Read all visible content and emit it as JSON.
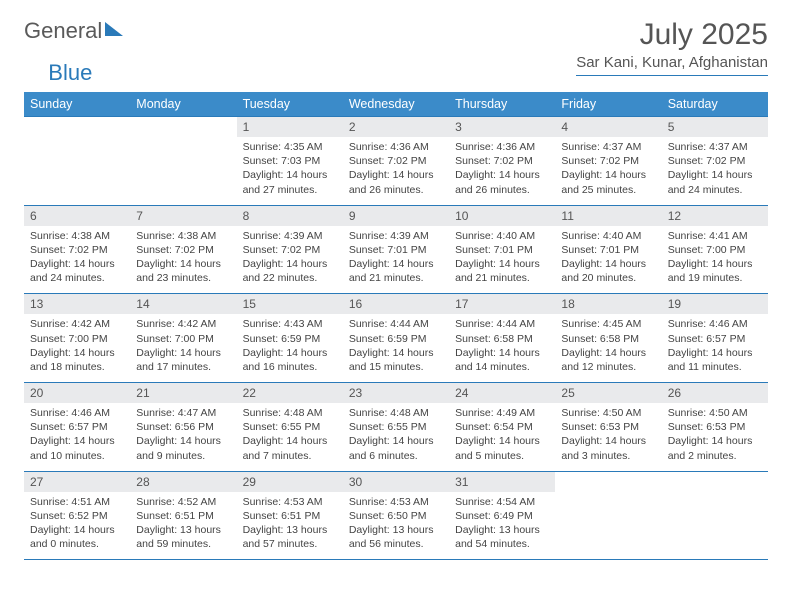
{
  "logo": {
    "part1": "General",
    "part2": "Blue"
  },
  "title": "July 2025",
  "location": "Sar Kani, Kunar, Afghanistan",
  "colors": {
    "header_bg": "#3b8bc9",
    "rule": "#2a7ab9",
    "daynum_bg": "#e9eaec",
    "text": "#444444",
    "title": "#555555"
  },
  "day_headers": [
    "Sunday",
    "Monday",
    "Tuesday",
    "Wednesday",
    "Thursday",
    "Friday",
    "Saturday"
  ],
  "weeks": [
    [
      null,
      null,
      {
        "n": "1",
        "sunrise": "4:35 AM",
        "sunset": "7:03 PM",
        "dl": "14 hours and 27 minutes."
      },
      {
        "n": "2",
        "sunrise": "4:36 AM",
        "sunset": "7:02 PM",
        "dl": "14 hours and 26 minutes."
      },
      {
        "n": "3",
        "sunrise": "4:36 AM",
        "sunset": "7:02 PM",
        "dl": "14 hours and 26 minutes."
      },
      {
        "n": "4",
        "sunrise": "4:37 AM",
        "sunset": "7:02 PM",
        "dl": "14 hours and 25 minutes."
      },
      {
        "n": "5",
        "sunrise": "4:37 AM",
        "sunset": "7:02 PM",
        "dl": "14 hours and 24 minutes."
      }
    ],
    [
      {
        "n": "6",
        "sunrise": "4:38 AM",
        "sunset": "7:02 PM",
        "dl": "14 hours and 24 minutes."
      },
      {
        "n": "7",
        "sunrise": "4:38 AM",
        "sunset": "7:02 PM",
        "dl": "14 hours and 23 minutes."
      },
      {
        "n": "8",
        "sunrise": "4:39 AM",
        "sunset": "7:02 PM",
        "dl": "14 hours and 22 minutes."
      },
      {
        "n": "9",
        "sunrise": "4:39 AM",
        "sunset": "7:01 PM",
        "dl": "14 hours and 21 minutes."
      },
      {
        "n": "10",
        "sunrise": "4:40 AM",
        "sunset": "7:01 PM",
        "dl": "14 hours and 21 minutes."
      },
      {
        "n": "11",
        "sunrise": "4:40 AM",
        "sunset": "7:01 PM",
        "dl": "14 hours and 20 minutes."
      },
      {
        "n": "12",
        "sunrise": "4:41 AM",
        "sunset": "7:00 PM",
        "dl": "14 hours and 19 minutes."
      }
    ],
    [
      {
        "n": "13",
        "sunrise": "4:42 AM",
        "sunset": "7:00 PM",
        "dl": "14 hours and 18 minutes."
      },
      {
        "n": "14",
        "sunrise": "4:42 AM",
        "sunset": "7:00 PM",
        "dl": "14 hours and 17 minutes."
      },
      {
        "n": "15",
        "sunrise": "4:43 AM",
        "sunset": "6:59 PM",
        "dl": "14 hours and 16 minutes."
      },
      {
        "n": "16",
        "sunrise": "4:44 AM",
        "sunset": "6:59 PM",
        "dl": "14 hours and 15 minutes."
      },
      {
        "n": "17",
        "sunrise": "4:44 AM",
        "sunset": "6:58 PM",
        "dl": "14 hours and 14 minutes."
      },
      {
        "n": "18",
        "sunrise": "4:45 AM",
        "sunset": "6:58 PM",
        "dl": "14 hours and 12 minutes."
      },
      {
        "n": "19",
        "sunrise": "4:46 AM",
        "sunset": "6:57 PM",
        "dl": "14 hours and 11 minutes."
      }
    ],
    [
      {
        "n": "20",
        "sunrise": "4:46 AM",
        "sunset": "6:57 PM",
        "dl": "14 hours and 10 minutes."
      },
      {
        "n": "21",
        "sunrise": "4:47 AM",
        "sunset": "6:56 PM",
        "dl": "14 hours and 9 minutes."
      },
      {
        "n": "22",
        "sunrise": "4:48 AM",
        "sunset": "6:55 PM",
        "dl": "14 hours and 7 minutes."
      },
      {
        "n": "23",
        "sunrise": "4:48 AM",
        "sunset": "6:55 PM",
        "dl": "14 hours and 6 minutes."
      },
      {
        "n": "24",
        "sunrise": "4:49 AM",
        "sunset": "6:54 PM",
        "dl": "14 hours and 5 minutes."
      },
      {
        "n": "25",
        "sunrise": "4:50 AM",
        "sunset": "6:53 PM",
        "dl": "14 hours and 3 minutes."
      },
      {
        "n": "26",
        "sunrise": "4:50 AM",
        "sunset": "6:53 PM",
        "dl": "14 hours and 2 minutes."
      }
    ],
    [
      {
        "n": "27",
        "sunrise": "4:51 AM",
        "sunset": "6:52 PM",
        "dl": "14 hours and 0 minutes."
      },
      {
        "n": "28",
        "sunrise": "4:52 AM",
        "sunset": "6:51 PM",
        "dl": "13 hours and 59 minutes."
      },
      {
        "n": "29",
        "sunrise": "4:53 AM",
        "sunset": "6:51 PM",
        "dl": "13 hours and 57 minutes."
      },
      {
        "n": "30",
        "sunrise": "4:53 AM",
        "sunset": "6:50 PM",
        "dl": "13 hours and 56 minutes."
      },
      {
        "n": "31",
        "sunrise": "4:54 AM",
        "sunset": "6:49 PM",
        "dl": "13 hours and 54 minutes."
      },
      null,
      null
    ]
  ],
  "labels": {
    "sunrise": "Sunrise:",
    "sunset": "Sunset:",
    "daylight": "Daylight:"
  }
}
